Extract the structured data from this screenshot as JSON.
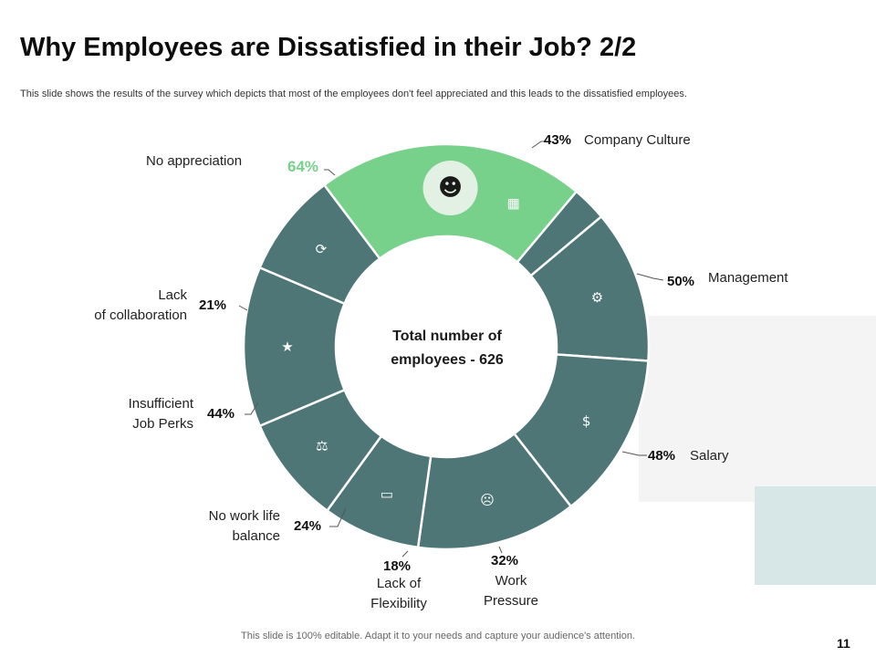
{
  "header": {
    "title": "Why Employees are Dissatisfied in their Job? 2/2",
    "subtitle": "This slide shows the results of the survey which depicts that most of the employees don't feel appreciated and this leads to the dissatisfied employees."
  },
  "chart_data": {
    "type": "pie",
    "center_label_lines": [
      "Total number of",
      "employees - 626"
    ],
    "slices": [
      {
        "label": "Company Culture",
        "value": 43,
        "pct_text": "43%",
        "icon": "building-icon"
      },
      {
        "label": "Management",
        "value": 50,
        "pct_text": "50%",
        "icon": "gear-icon"
      },
      {
        "label": "Salary",
        "value": 48,
        "pct_text": "48%",
        "icon": "money-person-icon"
      },
      {
        "label": "Work Pressure",
        "value": 32,
        "pct_text": "32%",
        "icon": "stressed-worker-icon"
      },
      {
        "label": "Lack of Flexibility",
        "value": 18,
        "pct_text": "18%",
        "icon": "desk-worker-icon"
      },
      {
        "label": "No work life balance",
        "value": 24,
        "pct_text": "24%",
        "icon": "balance-icon"
      },
      {
        "label": "Insufficient Job Perks",
        "value": 44,
        "pct_text": "44%",
        "icon": "perks-icon"
      },
      {
        "label": "Lack of collaboration",
        "value": 21,
        "pct_text": "21%",
        "icon": "collaboration-icon"
      },
      {
        "label": "No appreciation",
        "value": 64,
        "pct_text": "64%",
        "icon": "thumbs-down-person-icon"
      }
    ],
    "colors": {
      "default": "#4e7676",
      "highlight": "#77d18b",
      "icon_circle_highlight": "#e3f0e4"
    }
  },
  "labels": {
    "company_culture": "Company Culture",
    "management": "Management",
    "salary": "Salary",
    "work_pressure": [
      "Work",
      "Pressure"
    ],
    "lack_flexibility": [
      "Lack of",
      "Flexibility"
    ],
    "work_life": [
      "No work life",
      "balance"
    ],
    "job_perks": [
      "Insufficient",
      "Job Perks"
    ],
    "collaboration": [
      "Lack",
      "of collaboration"
    ],
    "appreciation": "No appreciation"
  },
  "footer": {
    "note": "This slide is 100% editable. Adapt it to your needs and capture your audience's attention.",
    "page_number": "11"
  }
}
